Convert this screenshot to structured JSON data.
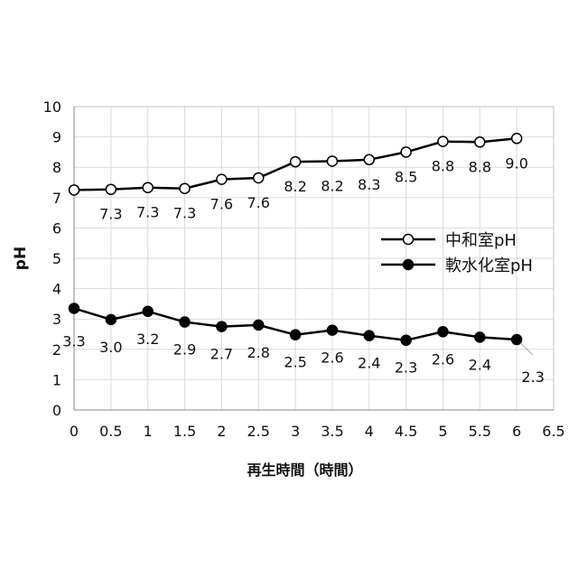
{
  "chart_data": {
    "type": "line",
    "xlabel": "再生時間（時間）",
    "ylabel": "pH",
    "xlim": [
      0,
      6.5
    ],
    "ylim": [
      0,
      10
    ],
    "xticks": [
      "0",
      "0.5",
      "1",
      "1.5",
      "2",
      "2.5",
      "3",
      "3.5",
      "4",
      "4.5",
      "5",
      "5.5",
      "6",
      "6.5"
    ],
    "yticks": [
      "0",
      "1",
      "2",
      "3",
      "4",
      "5",
      "6",
      "7",
      "8",
      "9",
      "10"
    ],
    "grid": true,
    "legend_position": "right-middle",
    "x": [
      0,
      0.5,
      1,
      1.5,
      2,
      2.5,
      3,
      3.5,
      4,
      4.5,
      5,
      5.5,
      6
    ],
    "series": [
      {
        "name": "中和室pH",
        "marker": "open-circle",
        "values": [
          7.25,
          7.27,
          7.33,
          7.3,
          7.6,
          7.65,
          8.18,
          8.2,
          8.25,
          8.5,
          8.85,
          8.83,
          8.95
        ],
        "labels": [
          "",
          "7.3",
          "7.3",
          "7.3",
          "7.6",
          "7.6",
          "8.2",
          "8.2",
          "8.3",
          "8.5",
          "8.8",
          "8.8",
          "9.0"
        ]
      },
      {
        "name": "軟水化室pH",
        "marker": "filled-circle",
        "values": [
          3.35,
          2.98,
          3.25,
          2.9,
          2.75,
          2.8,
          2.48,
          2.63,
          2.45,
          2.3,
          2.58,
          2.4,
          2.32
        ],
        "labels": [
          "3.3",
          "3.0",
          "3.2",
          "2.9",
          "2.7",
          "2.8",
          "2.5",
          "2.6",
          "2.4",
          "2.3",
          "2.6",
          "2.4",
          "2.3"
        ]
      }
    ]
  }
}
